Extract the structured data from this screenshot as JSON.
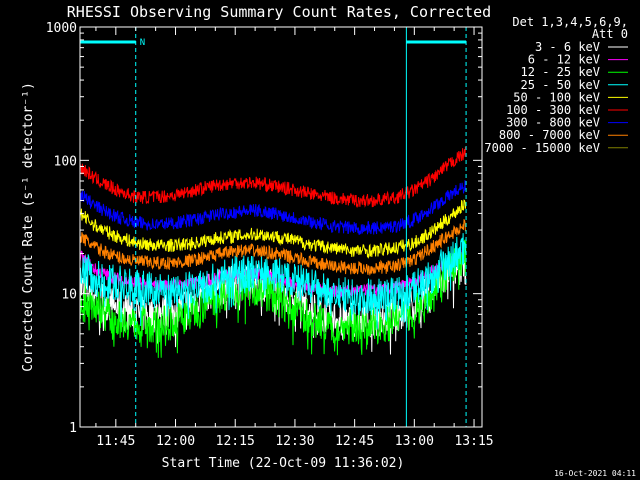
{
  "chart_data": {
    "type": "line",
    "title": "RHESSI Observing Summary Count Rates, Corrected",
    "xlabel": "Start Time (22-Oct-09 11:36:02)",
    "ylabel": "Corrected Count Rate (s⁻¹ detector⁻¹)",
    "x_unit": "minutes after 11:36:02",
    "xlim": [
      "11:36",
      "13:17"
    ],
    "yscale": "log",
    "ylim": [
      1,
      1000
    ],
    "x_ticks": [
      "11:45",
      "12:00",
      "12:15",
      "12:30",
      "12:45",
      "13:00",
      "13:15"
    ],
    "y_ticks": [
      "1",
      "10",
      "100",
      "1000"
    ],
    "grid": false,
    "legend_header": [
      "Det 1,3,4,5,6,9,",
      "Att 0"
    ],
    "legend_placement": "right",
    "footer_date": "16-Oct-2021 04:11",
    "annotations": [
      {
        "text": "N",
        "color": "#00ffff"
      }
    ],
    "dashed_lines": [
      "11:50",
      "13:13"
    ],
    "night_bars": [
      [
        "11:36",
        "11:50"
      ],
      [
        "12:58",
        "13:13"
      ]
    ],
    "series": [
      {
        "name": "3 - 6 keV",
        "color": "#ffffff",
        "x": [
          "11:36",
          "11:40",
          "11:45",
          "11:50",
          "11:55",
          "12:00",
          "12:05",
          "12:10",
          "12:15",
          "12:20",
          "12:25",
          "12:30",
          "12:35",
          "12:40",
          "12:45",
          "12:50",
          "12:55",
          "13:00",
          "13:05",
          "13:10",
          "13:13"
        ],
        "y": [
          11,
          9.5,
          8,
          7,
          7,
          7.5,
          9,
          11,
          12,
          12.5,
          11,
          9,
          7.5,
          6.5,
          6.5,
          6.5,
          7,
          8,
          11,
          15,
          16
        ]
      },
      {
        "name": "6 - 12 keV",
        "color": "#ff00ff",
        "x": [
          "11:36",
          "11:40",
          "11:45",
          "11:50",
          "11:55",
          "12:00",
          "12:05",
          "12:10",
          "12:15",
          "12:20",
          "12:25",
          "12:30",
          "12:35",
          "12:40",
          "12:45",
          "12:50",
          "12:55",
          "13:00",
          "13:05",
          "13:10",
          "13:13"
        ],
        "y": [
          19,
          15,
          13,
          12,
          11.5,
          11.5,
          12,
          13,
          14,
          14,
          13,
          12,
          11,
          10.5,
          10.5,
          10.5,
          11,
          12,
          15,
          18,
          20
        ]
      },
      {
        "name": "12 - 25 keV",
        "color": "#00ff00",
        "x": [
          "11:36",
          "11:40",
          "11:45",
          "11:50",
          "11:55",
          "12:00",
          "12:05",
          "12:10",
          "12:15",
          "12:20",
          "12:25",
          "12:30",
          "12:35",
          "12:40",
          "12:45",
          "12:50",
          "12:55",
          "13:00",
          "13:05",
          "13:10",
          "13:13"
        ],
        "y": [
          10,
          8,
          6.5,
          6,
          5.8,
          6.2,
          7.5,
          9.5,
          11,
          11,
          9.5,
          7.5,
          6.3,
          5.7,
          5.7,
          5.7,
          6.2,
          7.5,
          11,
          17,
          19
        ]
      },
      {
        "name": "25 - 50 keV",
        "color": "#00ffff",
        "x": [
          "11:36",
          "11:40",
          "11:45",
          "11:50",
          "11:55",
          "12:00",
          "12:05",
          "12:10",
          "12:15",
          "12:20",
          "12:25",
          "12:30",
          "12:35",
          "12:40",
          "12:45",
          "12:50",
          "12:55",
          "13:00",
          "13:05",
          "13:10",
          "13:13"
        ],
        "y": [
          16,
          13,
          12,
          11,
          10.5,
          10.5,
          11,
          12.5,
          14,
          15,
          14,
          12.5,
          11,
          10,
          9.5,
          9.5,
          10,
          11,
          14,
          19,
          23
        ]
      },
      {
        "name": "50 - 100 keV",
        "color": "#ffff00",
        "x": [
          "11:36",
          "11:40",
          "11:45",
          "11:50",
          "11:55",
          "12:00",
          "12:05",
          "12:10",
          "12:15",
          "12:20",
          "12:25",
          "12:30",
          "12:35",
          "12:40",
          "12:45",
          "12:50",
          "12:55",
          "13:00",
          "13:05",
          "13:10",
          "13:13"
        ],
        "y": [
          40,
          32,
          27,
          24,
          23,
          23,
          24,
          26,
          27,
          28,
          27,
          25,
          23,
          22,
          21,
          21,
          22,
          24,
          30,
          40,
          48
        ]
      },
      {
        "name": "100 - 300 keV",
        "color": "#ff0000",
        "x": [
          "11:36",
          "11:40",
          "11:45",
          "11:50",
          "11:55",
          "12:00",
          "12:05",
          "12:10",
          "12:15",
          "12:20",
          "12:25",
          "12:30",
          "12:35",
          "12:40",
          "12:45",
          "12:50",
          "12:55",
          "13:00",
          "13:05",
          "13:10",
          "13:13"
        ],
        "y": [
          90,
          72,
          60,
          53,
          53,
          55,
          60,
          65,
          68,
          68,
          64,
          60,
          55,
          52,
          50,
          50,
          52,
          60,
          75,
          100,
          115
        ]
      },
      {
        "name": "300 - 800 keV",
        "color": "#0000ff",
        "x": [
          "11:36",
          "11:40",
          "11:45",
          "11:50",
          "11:55",
          "12:00",
          "12:05",
          "12:10",
          "12:15",
          "12:20",
          "12:25",
          "12:30",
          "12:35",
          "12:40",
          "12:45",
          "12:50",
          "12:55",
          "13:00",
          "13:05",
          "13:10",
          "13:13"
        ],
        "y": [
          56,
          45,
          38,
          34,
          33,
          34,
          36,
          39,
          41,
          42,
          40,
          37,
          34,
          32,
          31,
          31,
          32,
          36,
          45,
          58,
          64
        ]
      },
      {
        "name": "800 - 7000 keV",
        "color": "#ff8000",
        "x": [
          "11:36",
          "11:40",
          "11:45",
          "11:50",
          "11:55",
          "12:00",
          "12:05",
          "12:10",
          "12:15",
          "12:20",
          "12:25",
          "12:30",
          "12:35",
          "12:40",
          "12:45",
          "12:50",
          "12:55",
          "13:00",
          "13:05",
          "13:10",
          "13:13"
        ],
        "y": [
          27,
          22,
          19,
          17.5,
          17,
          17,
          18,
          19.5,
          21,
          21,
          20,
          18.5,
          17,
          16,
          15.5,
          15.5,
          16,
          18,
          23,
          29,
          33
        ]
      },
      {
        "name": "7000 - 15000 keV",
        "color": "#808000",
        "x": [],
        "y": []
      }
    ]
  }
}
